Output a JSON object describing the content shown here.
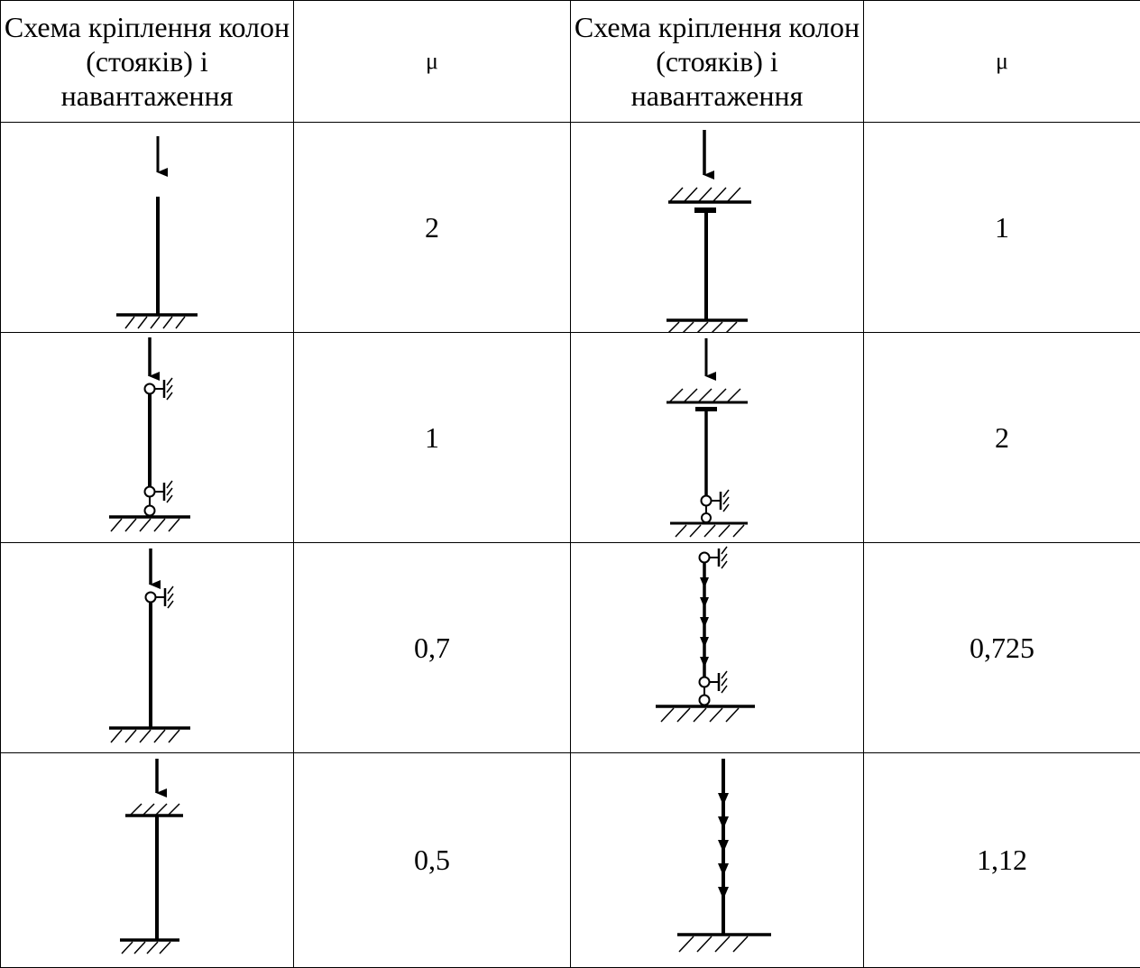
{
  "header": {
    "scheme_col": "Схема кріплення колон (стояків) і навантаження",
    "mu_col": "μ"
  },
  "rows": [
    {
      "left": {
        "scheme": "fixed-base-free-top",
        "mu": "2"
      },
      "right": {
        "scheme": "fixed-base-fixed-sliding-top",
        "mu": "1"
      }
    },
    {
      "left": {
        "scheme": "pinned-base-pinned-top",
        "mu": "1"
      },
      "right": {
        "scheme": "pinned-base-fixed-sliding-top",
        "mu": "2"
      }
    },
    {
      "left": {
        "scheme": "fixed-base-pinned-top",
        "mu": "0,7"
      },
      "right": {
        "scheme": "pinned-both-distributed-load",
        "mu": "0,725"
      }
    },
    {
      "left": {
        "scheme": "fixed-base-fixed-top",
        "mu": "0,5"
      },
      "right": {
        "scheme": "fixed-base-free-top-distributed",
        "mu": "1,12"
      }
    }
  ]
}
